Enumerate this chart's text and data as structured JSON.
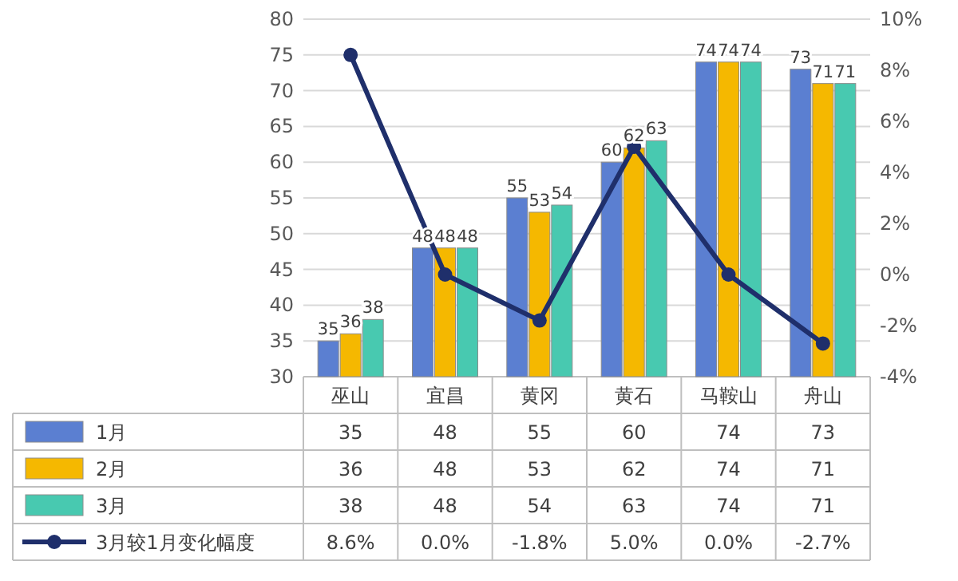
{
  "chart_data": {
    "type": "bar",
    "categories": [
      "巫山",
      "宜昌",
      "黄冈",
      "黄石",
      "马鞍山",
      "舟山"
    ],
    "series": [
      {
        "name": "1月",
        "color": "#5b7fd1",
        "values": [
          35,
          48,
          55,
          60,
          74,
          73
        ],
        "value_labels": [
          "35",
          "48",
          "55",
          "60",
          "74",
          "73"
        ]
      },
      {
        "name": "2月",
        "color": "#f5b800",
        "values": [
          36,
          48,
          53,
          62,
          74,
          71
        ],
        "value_labels": [
          "36",
          "48",
          "53",
          "62",
          "74",
          "71"
        ]
      },
      {
        "name": "3月",
        "color": "#48c9b0",
        "values": [
          38,
          48,
          54,
          63,
          74,
          71
        ],
        "value_labels": [
          "38",
          "48",
          "54",
          "63",
          "74",
          "71"
        ]
      },
      {
        "name": "3月较1月变化幅度",
        "type": "line",
        "axis": "y2",
        "color": "#1f2f6b",
        "values": [
          8.6,
          0.0,
          -1.8,
          5.0,
          0.0,
          -2.7
        ],
        "value_labels": [
          "8.6%",
          "0.0%",
          "-1.8%",
          "5.0%",
          "0.0%",
          "-2.7%"
        ]
      }
    ],
    "ylim": [
      30,
      80
    ],
    "yticks": [
      30,
      35,
      40,
      45,
      50,
      55,
      60,
      65,
      70,
      75,
      80
    ],
    "y2lim": [
      -4,
      10
    ],
    "y2ticks": [
      {
        "value": -4,
        "label": "-4%"
      },
      {
        "value": -2,
        "label": "-2%"
      },
      {
        "value": 0,
        "label": "0%"
      },
      {
        "value": 2,
        "label": "2%"
      },
      {
        "value": 4,
        "label": "4%"
      },
      {
        "value": 6,
        "label": "6%"
      },
      {
        "value": 8,
        "label": "8%"
      },
      {
        "value": 10,
        "label": "10%"
      }
    ],
    "grid": "y",
    "legend": "bottom",
    "marker": "circle"
  }
}
